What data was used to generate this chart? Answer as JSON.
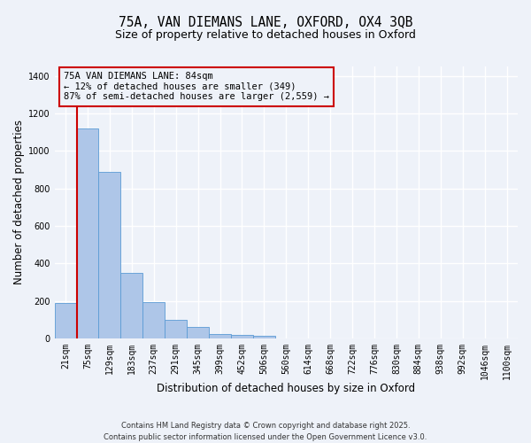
{
  "title_line1": "75A, VAN DIEMANS LANE, OXFORD, OX4 3QB",
  "title_line2": "Size of property relative to detached houses in Oxford",
  "xlabel": "Distribution of detached houses by size in Oxford",
  "ylabel": "Number of detached properties",
  "categories": [
    "21sqm",
    "75sqm",
    "129sqm",
    "183sqm",
    "237sqm",
    "291sqm",
    "345sqm",
    "399sqm",
    "452sqm",
    "506sqm",
    "560sqm",
    "614sqm",
    "668sqm",
    "722sqm",
    "776sqm",
    "830sqm",
    "884sqm",
    "938sqm",
    "992sqm",
    "1046sqm",
    "1100sqm"
  ],
  "values": [
    190,
    1120,
    890,
    350,
    195,
    100,
    63,
    22,
    20,
    12,
    0,
    0,
    0,
    0,
    0,
    0,
    0,
    0,
    0,
    0,
    0
  ],
  "bar_color": "#aec6e8",
  "bar_edge_color": "#5b9bd5",
  "bar_width": 1.0,
  "vline_x": 0.5,
  "vline_color": "#cc0000",
  "ylim": [
    0,
    1450
  ],
  "yticks": [
    0,
    200,
    400,
    600,
    800,
    1000,
    1200,
    1400
  ],
  "annotation_text": "75A VAN DIEMANS LANE: 84sqm\n← 12% of detached houses are smaller (349)\n87% of semi-detached houses are larger (2,559) →",
  "annotation_box_color": "#cc0000",
  "footer_line1": "Contains HM Land Registry data © Crown copyright and database right 2025.",
  "footer_line2": "Contains public sector information licensed under the Open Government Licence v3.0.",
  "bg_color": "#eef2f9",
  "grid_color": "#ffffff",
  "title_fontsize": 10.5,
  "subtitle_fontsize": 9,
  "axis_label_fontsize": 8.5,
  "tick_fontsize": 7,
  "annotation_fontsize": 7.5,
  "footer_fontsize": 6
}
